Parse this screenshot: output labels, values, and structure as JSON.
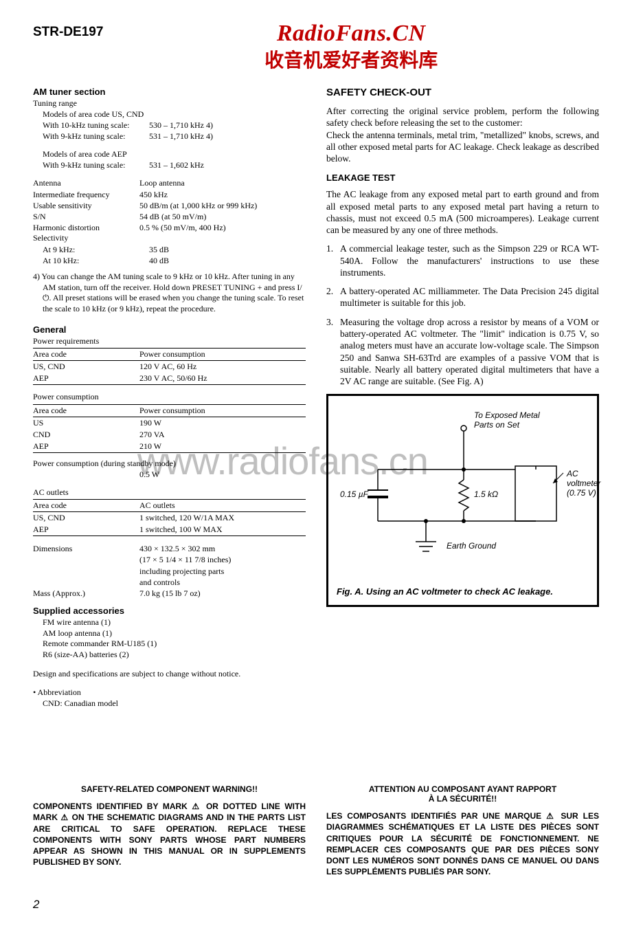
{
  "header": {
    "model": "STR-DE197",
    "logo_top": "RadioFans.CN",
    "logo_sub": "收音机爱好者资料库"
  },
  "watermark": "www.radiofans.cn",
  "left": {
    "am_title": "AM tuner section",
    "tuning_range": "Tuning range",
    "models_us": "Models of area code US, CND",
    "scale10": "With 10-kHz tuning scale:",
    "scale10_v": "530 – 1,710 kHz 4)",
    "scale9": "With 9-kHz tuning scale:",
    "scale9_v": "531 – 1,710 kHz 4)",
    "models_aep": "Models of area code AEP",
    "scale9b": "With 9-kHz tuning scale:",
    "scale9b_v": "531 – 1,602 kHz",
    "specs": [
      {
        "l": "Antenna",
        "r": "Loop antenna"
      },
      {
        "l": "Intermediate frequency",
        "r": "450 kHz"
      },
      {
        "l": "Usable sensitivity",
        "r": "50 dB/m (at 1,000 kHz or 999 kHz)"
      },
      {
        "l": "S/N",
        "r": "54 dB (at 50 mV/m)"
      },
      {
        "l": "Harmonic distortion",
        "r": "0.5 % (50 mV/m, 400 Hz)"
      }
    ],
    "selectivity": "Selectivity",
    "sel9": {
      "l": "At 9 kHz:",
      "r": "35 dB"
    },
    "sel10": {
      "l": "At 10 kHz:",
      "r": "40 dB"
    },
    "note4": "4)  You can change the AM tuning scale to 9 kHz or 10 kHz. After tuning in any AM station, turn off the receiver. Hold down PRESET TUNING + and press I/⏻. All preset stations will be erased when you change the tuning scale. To reset the scale to 10 kHz (or 9 kHz), repeat the procedure.",
    "general_title": "General",
    "power_req": "Power requirements",
    "req_table": {
      "h1": "Area code",
      "h2": "Power consumption",
      "rows": [
        {
          "c1": "US, CND",
          "c2": "120 V AC, 60 Hz"
        },
        {
          "c1": "AEP",
          "c2": "230 V AC, 50/60 Hz"
        }
      ]
    },
    "power_cons": "Power consumption",
    "cons_table": {
      "h1": "Area code",
      "h2": "Power consumption",
      "rows": [
        {
          "c1": "US",
          "c2": "190 W"
        },
        {
          "c1": "CND",
          "c2": "270 VA"
        },
        {
          "c1": "AEP",
          "c2": "210 W"
        }
      ]
    },
    "standby": "Power consumption (during standby mode)",
    "standby_v": "0.5 W",
    "ac_outlets": "AC outlets",
    "ac_table": {
      "h1": "Area code",
      "h2": "AC outlets",
      "rows": [
        {
          "c1": "US, CND",
          "c2": "1 switched, 120 W/1A MAX"
        },
        {
          "c1": "AEP",
          "c2": "1 switched, 100 W MAX"
        }
      ]
    },
    "dims_l": "Dimensions",
    "dims_r": "430 × 132.5 × 302 mm\n(17 × 5 1/4 × 11 7/8 inches)\nincluding projecting parts\nand controls",
    "mass_l": "Mass (Approx.)",
    "mass_r": "7.0 kg (15 lb 7 oz)",
    "supplied_title": "Supplied accessories",
    "supplied": [
      "FM wire antenna (1)",
      "AM loop antenna (1)",
      "Remote commander RM-U185 (1)",
      "R6 (size-AA) batteries (2)"
    ],
    "design_note": "Design and specifications are subject to change without notice.",
    "abbrev_h": "• Abbreviation",
    "abbrev": "CND: Canadian model"
  },
  "right": {
    "safety_title": "SAFETY  CHECK-OUT",
    "p1": "After correcting the original service problem, perform the following safety check before releasing the set to the customer:",
    "p2": "Check the antenna terminals, metal trim, \"metallized\" knobs, screws, and all other exposed metal parts for AC leakage. Check leakage as described below.",
    "leak_title": "LEAKAGE TEST",
    "p3": "The AC leakage from any exposed metal part to earth ground and from all exposed metal parts to any exposed metal part having a return to chassis, must not exceed 0.5 mA (500 microamperes). Leakage current can be measured by any one of three methods.",
    "items": [
      "A commercial leakage tester, such as the Simpson 229 or RCA WT-540A. Follow the manufacturers' instructions to use these instruments.",
      "A battery-operated AC milliammeter. The Data Precision 245 digital multimeter is suitable for this job.",
      "Measuring the voltage drop across a resistor by means of a VOM or battery-operated AC voltmeter. The \"limit\" indication is 0.75 V, so analog meters must have an accurate low-voltage scale. The Simpson 250 and Sanwa SH-63Trd are examples of a passive VOM that is suitable. Nearly all battery operated digital multimeters that have a 2V AC range are suitable. (See Fig. A)"
    ],
    "fig_caption": "Fig. A. Using an AC voltmeter to check AC leakage.",
    "fig": {
      "exposed": "To Exposed Metal\nParts on Set",
      "cap": "0.15 µF",
      "res": "1.5 kΩ",
      "volt1": "AC",
      "volt2": "voltmeter",
      "volt3": "(0.75 V)",
      "ground": "Earth Ground"
    }
  },
  "warning": {
    "en_h": "SAFETY-RELATED  COMPONENT  WARNING!!",
    "en_p": "COMPONENTS IDENTIFIED BY MARK ⚠ OR DOTTED LINE WITH MARK ⚠ ON THE SCHEMATIC DIAGRAMS AND IN THE PARTS LIST ARE CRITICAL TO SAFE OPERATION. REPLACE THESE COMPONENTS WITH SONY PARTS WHOSE PART NUMBERS APPEAR AS SHOWN IN THIS MANUAL OR IN SUPPLEMENTS PUBLISHED BY SONY.",
    "fr_h": "ATTENTION AU COMPOSANT AYANT RAPPORT\nÀ LA SÉCURITÉ!!",
    "fr_p": "LES COMPOSANTS IDENTIFIÉS PAR UNE MARQUE ⚠ SUR LES DIAGRAMMES SCHÉMATIQUES ET LA LISTE  DES PIÈCES SONT CRITIQUES POUR LA SÉCURITÉ DE FONCTIONNEMENT. NE REMPLACER CES COMPOSANTS QUE PAR DES PIÈCES SONY DONT LES NUMÉROS SONT DONNÉS DANS CE MANUEL OU DANS LES SUPPLÉMENTS PUBLIÉS PAR SONY."
  },
  "pagenum": "2"
}
